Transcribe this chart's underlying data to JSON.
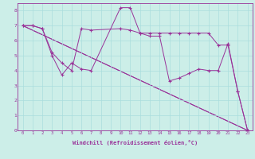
{
  "xlabel": "Windchill (Refroidissement éolien,°C)",
  "background_color": "#cceee8",
  "line_color": "#993399",
  "xlim": [
    -0.5,
    23.5
  ],
  "ylim": [
    0,
    8.5
  ],
  "xtick_labels": [
    "0",
    "1",
    "2",
    "3",
    "4",
    "5",
    "6",
    "7",
    "8",
    "9",
    "10",
    "11",
    "12",
    "13",
    "14",
    "15",
    "16",
    "17",
    "18",
    "19",
    "20",
    "21",
    "22",
    "23"
  ],
  "ytick_labels": [
    "0",
    "1",
    "2",
    "3",
    "4",
    "5",
    "6",
    "7",
    "8"
  ],
  "grid_color": "#aadddd",
  "series": [
    {
      "x": [
        0,
        1,
        2,
        3,
        4,
        5,
        6,
        7,
        10,
        11,
        12,
        13,
        14,
        15,
        16,
        17,
        18,
        19,
        20,
        21,
        22,
        23
      ],
      "y": [
        7,
        7,
        6.8,
        5.0,
        3.7,
        4.5,
        4.1,
        4.0,
        8.2,
        8.2,
        6.5,
        6.3,
        6.3,
        3.3,
        3.5,
        3.8,
        4.1,
        4.0,
        4.0,
        5.8,
        2.6,
        0.0
      ]
    },
    {
      "x": [
        0,
        1,
        2,
        3,
        4,
        5,
        6,
        7,
        10,
        11,
        12,
        13,
        14,
        15,
        16,
        17,
        18,
        19,
        20,
        21,
        22,
        23
      ],
      "y": [
        7.0,
        7.0,
        6.8,
        5.2,
        4.5,
        4.0,
        6.8,
        6.7,
        6.8,
        6.7,
        6.5,
        6.5,
        6.5,
        6.5,
        6.5,
        6.5,
        6.5,
        6.5,
        5.7,
        5.7,
        2.6,
        0.0
      ]
    },
    {
      "x": [
        0,
        23
      ],
      "y": [
        7.0,
        0.0
      ]
    },
    {
      "x": [
        0,
        23
      ],
      "y": [
        7.0,
        0.0
      ]
    }
  ]
}
